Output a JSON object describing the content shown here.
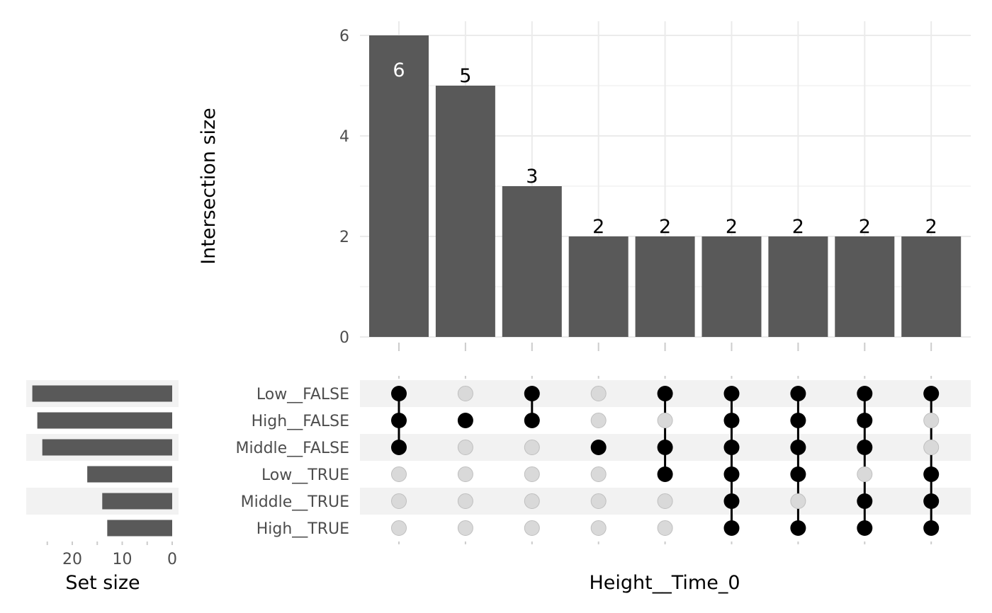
{
  "chart_data": [
    {
      "type": "bar",
      "name": "intersection-size-chart",
      "ylabel": "Intersection size",
      "xlabel": "Height__Time_0",
      "ylim": [
        0,
        6.2
      ],
      "yticks": [
        0,
        2,
        4,
        6
      ],
      "values": [
        6,
        5,
        3,
        2,
        2,
        2,
        2,
        2,
        2
      ],
      "value_labels": [
        "6",
        "5",
        "3",
        "2",
        "2",
        "2",
        "2",
        "2",
        "2"
      ],
      "grid": true,
      "bar_color": "#595959"
    },
    {
      "type": "table",
      "name": "intersection-matrix",
      "sets": [
        "Low__FALSE",
        "High__FALSE",
        "Middle__FALSE",
        "Low__TRUE",
        "Middle__TRUE",
        "High__TRUE"
      ],
      "membership": [
        [
          1,
          1,
          1,
          0,
          0,
          0
        ],
        [
          0,
          1,
          0,
          0,
          0,
          0
        ],
        [
          1,
          1,
          0,
          0,
          0,
          0
        ],
        [
          0,
          0,
          1,
          0,
          0,
          0
        ],
        [
          1,
          0,
          1,
          1,
          0,
          0
        ],
        [
          1,
          1,
          1,
          1,
          1,
          1
        ],
        [
          1,
          1,
          1,
          1,
          0,
          1
        ],
        [
          1,
          1,
          1,
          0,
          1,
          1
        ],
        [
          1,
          0,
          0,
          1,
          1,
          1
        ]
      ],
      "active_color": "#000000",
      "inactive_color": "#d9d9d9",
      "stripe_color": "#f2f2f2"
    },
    {
      "type": "bar",
      "name": "set-size-chart",
      "orientation": "horizontal",
      "xlabel": "Set size",
      "categories": [
        "Low__FALSE",
        "High__FALSE",
        "Middle__FALSE",
        "Low__TRUE",
        "Middle__TRUE",
        "High__TRUE"
      ],
      "values": [
        28,
        27,
        26,
        17,
        14,
        13
      ],
      "xlim": [
        0,
        29
      ],
      "xticks": [
        20,
        10,
        0
      ],
      "reversed": true
    }
  ]
}
